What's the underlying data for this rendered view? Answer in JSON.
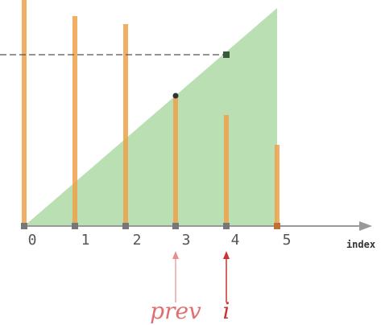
{
  "indices": [
    "0",
    "1",
    "2",
    "3",
    "4",
    "5"
  ],
  "axis_label": "index",
  "pointers": {
    "prev": "prev",
    "i": "i"
  }
}
